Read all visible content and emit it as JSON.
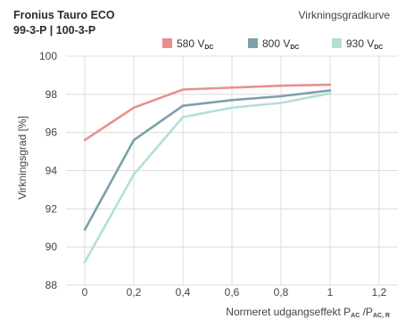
{
  "header": {
    "title_line1": "Fronius Tauro ECO",
    "title_line2": "99-3-P | 100-3-P",
    "subtitle": "Virkningsgradkurve"
  },
  "chart_data": {
    "type": "line",
    "title": "Fronius Tauro ECO 99-3-P | 100-3-P",
    "subtitle": "Virkningsgradkurve",
    "xlabel": "Normeret udgangseffekt P_AC /P_AC, R",
    "ylabel": "Virkningsgrad [%]",
    "xlim": [
      0,
      1.2
    ],
    "ylim": [
      88,
      100
    ],
    "x_ticks": [
      0,
      0.2,
      0.4,
      0.6,
      0.8,
      1,
      1.2
    ],
    "x_tick_labels": [
      "0",
      "0,2",
      "0,4",
      "0,6",
      "0,8",
      "1",
      "1,2"
    ],
    "y_ticks": [
      88,
      90,
      92,
      94,
      96,
      98,
      100
    ],
    "y_tick_labels": [
      "88",
      "90",
      "92",
      "94",
      "96",
      "98",
      "100"
    ],
    "grid": true,
    "legend_position": "top-right",
    "series": [
      {
        "name": "580 V_DC",
        "legend_main": "580 V",
        "legend_sub": "DC",
        "color": "#e8908e",
        "x": [
          0,
          0.2,
          0.4,
          0.6,
          0.8,
          1.0
        ],
        "y": [
          95.6,
          97.3,
          98.25,
          98.35,
          98.45,
          98.5
        ]
      },
      {
        "name": "800 V_DC",
        "legend_main": "800 V",
        "legend_sub": "DC",
        "color": "#7d9fab",
        "x": [
          0,
          0.2,
          0.4,
          0.6,
          0.8,
          1.0
        ],
        "y": [
          90.9,
          95.6,
          97.4,
          97.7,
          97.9,
          98.2
        ]
      },
      {
        "name": "930 V_DC",
        "legend_main": "930 V",
        "legend_sub": "DC",
        "color": "#b3e0d6",
        "x": [
          0,
          0.2,
          0.4,
          0.6,
          0.8,
          1.0
        ],
        "y": [
          89.2,
          93.8,
          96.8,
          97.3,
          97.55,
          98.05
        ]
      }
    ]
  },
  "axis_label_parts": {
    "xlabel_main": "Normeret udgangseffekt P",
    "xlabel_sub1": "AC",
    "xlabel_mid": " /P",
    "xlabel_sub2": "AC, R",
    "ylabel": "Virkningsgrad [%]"
  }
}
